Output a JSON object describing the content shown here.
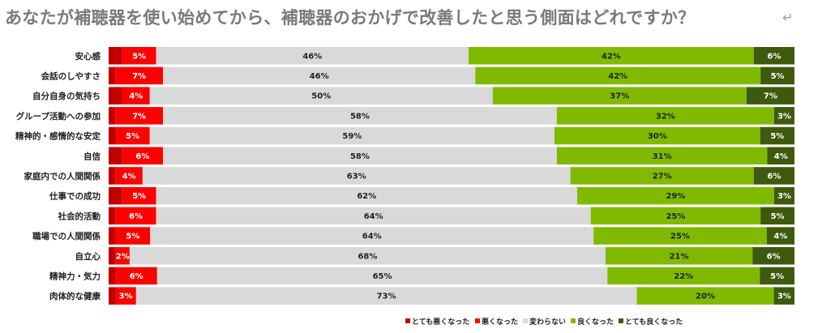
{
  "page": {
    "title": "あなたが補聴器を使い始めてから、補聴器のおかげで改善したと思う側面はどれですか？",
    "return_mark": "↵"
  },
  "chart_data": {
    "type": "bar",
    "orientation": "horizontal",
    "stacked": true,
    "percent_stacked": true,
    "categories": [
      "安心感",
      "会話のしやすさ",
      "自分自身の気持ち",
      "グループ活動への参加",
      "精神的・感情的な安定",
      "自信",
      "家庭内での人間関係",
      "仕事での成功",
      "社会的活動",
      "職場での人間関係",
      "自立心",
      "精神力・気力",
      "肉体的な健康"
    ],
    "series": [
      {
        "name": "とても悪くなった",
        "color": "#c00000",
        "values": [
          2,
          1,
          2,
          1,
          1,
          2,
          1,
          2,
          1,
          1,
          1,
          1,
          1
        ]
      },
      {
        "name": "悪くなった",
        "color": "#ff0000",
        "values": [
          5,
          7,
          4,
          7,
          5,
          6,
          4,
          5,
          6,
          5,
          2,
          6,
          3
        ]
      },
      {
        "name": "変わらない",
        "color": "#d9d9d9",
        "values": [
          46,
          46,
          50,
          58,
          59,
          58,
          63,
          62,
          64,
          64,
          68,
          65,
          73
        ]
      },
      {
        "name": "良くなった",
        "color": "#7fba00",
        "values": [
          42,
          42,
          37,
          32,
          30,
          31,
          27,
          29,
          25,
          25,
          21,
          22,
          20
        ]
      },
      {
        "name": "とても良くなった",
        "color": "#3d5a0e",
        "values": [
          6,
          5,
          7,
          3,
          5,
          4,
          6,
          3,
          5,
          4,
          6,
          5,
          3
        ]
      }
    ],
    "labeled_series": [
      1,
      2,
      3,
      4
    ],
    "legend": "bottom-center",
    "grid": false
  }
}
